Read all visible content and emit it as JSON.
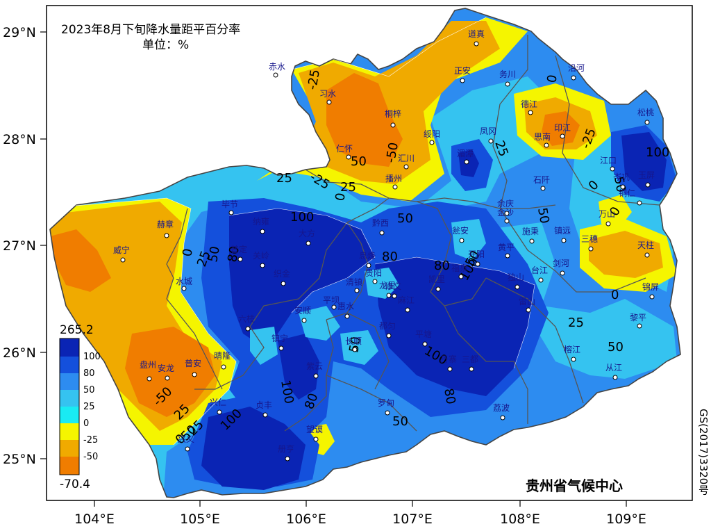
{
  "title": "2023年8月下旬降水量距平百分率",
  "unit": "单位：%",
  "credit": "贵州省气候中心",
  "approval_no": "GS(2017)3320号",
  "axes": {
    "lat_ticks": [
      "29°N",
      "28°N",
      "27°N",
      "26°N",
      "25°N"
    ],
    "lon_ticks": [
      "104°E",
      "105°E",
      "106°E",
      "107°E",
      "108°E",
      "109°E"
    ]
  },
  "legend": {
    "max": "265.2",
    "min": "-70.4",
    "levels": [
      "100",
      "80",
      "50",
      "25",
      "0",
      "-25",
      "-50"
    ],
    "colors": [
      "#0a24b4",
      "#1450dc",
      "#2d8cf0",
      "#35c3f0",
      "#19ebf3",
      "#f5f500",
      "#f0aa00",
      "#f07d00"
    ]
  },
  "contour_labels": [
    "100",
    "80",
    "50",
    "25",
    "0",
    "-25",
    "-50"
  ],
  "stations": [
    {
      "name": "道真"
    },
    {
      "name": "赤水"
    },
    {
      "name": "习水"
    },
    {
      "name": "正安"
    },
    {
      "name": "务川"
    },
    {
      "name": "沿河"
    },
    {
      "name": "桐梓"
    },
    {
      "name": "德江"
    },
    {
      "name": "绥阳"
    },
    {
      "name": "凤冈"
    },
    {
      "name": "思南"
    },
    {
      "name": "印江"
    },
    {
      "name": "松桃"
    },
    {
      "name": "仁怀"
    },
    {
      "name": "汇川"
    },
    {
      "name": "湄潭"
    },
    {
      "name": "江口"
    },
    {
      "name": "播州"
    },
    {
      "name": "石阡"
    },
    {
      "name": "铜仁"
    },
    {
      "name": "金沙"
    },
    {
      "name": "毕节"
    },
    {
      "name": "赫章"
    },
    {
      "name": "威宁"
    },
    {
      "name": "瓮安"
    },
    {
      "name": "施秉"
    },
    {
      "name": "镇远"
    },
    {
      "name": "三穗"
    },
    {
      "name": "天柱"
    },
    {
      "name": "黄平"
    },
    {
      "name": "剑河"
    },
    {
      "name": "台江"
    },
    {
      "name": "水城"
    },
    {
      "name": "清镇"
    },
    {
      "name": "贵阳"
    },
    {
      "name": "福泉"
    },
    {
      "name": "平坝"
    },
    {
      "name": "安顺"
    },
    {
      "name": "锦屏"
    },
    {
      "name": "雷山"
    },
    {
      "name": "黎平"
    },
    {
      "name": "长顺"
    },
    {
      "name": "盘州"
    },
    {
      "name": "普安"
    },
    {
      "name": "晴隆"
    },
    {
      "name": "榕江"
    },
    {
      "name": "从江"
    },
    {
      "name": "兴仁"
    },
    {
      "name": "罗甸"
    },
    {
      "name": "荔波"
    },
    {
      "name": "望谟"
    },
    {
      "name": "册亨"
    },
    {
      "name": "兴义"
    },
    {
      "name": "贞丰"
    },
    {
      "name": "三都"
    },
    {
      "name": "镇宁"
    },
    {
      "name": "紫云"
    },
    {
      "name": "惠水"
    },
    {
      "name": "龙里"
    },
    {
      "name": "都匀"
    },
    {
      "name": "丹寨"
    },
    {
      "name": "麻江"
    },
    {
      "name": "凯里"
    },
    {
      "name": "织金"
    },
    {
      "name": "纳雍"
    },
    {
      "name": "大方"
    },
    {
      "name": "黔西"
    },
    {
      "name": "修文"
    },
    {
      "name": "开阳"
    },
    {
      "name": "余庆"
    },
    {
      "name": "岑巩"
    },
    {
      "name": "玉屏"
    },
    {
      "name": "万山"
    },
    {
      "name": "独山"
    },
    {
      "name": "平塘"
    },
    {
      "name": "六枝"
    },
    {
      "name": "关岭"
    },
    {
      "name": "安龙"
    },
    {
      "name": "普定"
    },
    {
      "name": "息烽"
    }
  ]
}
